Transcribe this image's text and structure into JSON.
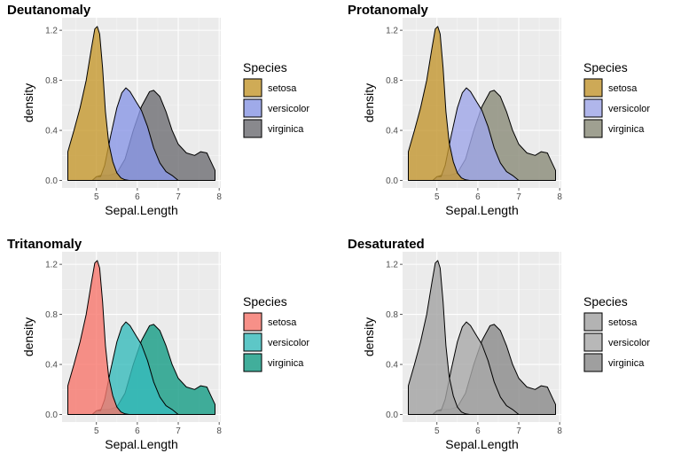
{
  "chart_data": [
    {
      "type": "area",
      "title": "Deutanomaly",
      "xlabel": "Sepal.Length",
      "ylabel": "density",
      "legend_title": "Species",
      "xlim": [
        4.3,
        7.9
      ],
      "ylim": [
        0,
        1.24
      ],
      "x_ticks": [
        "5",
        "6",
        "7",
        "8"
      ],
      "y_ticks": [
        "0.0",
        "0.4",
        "0.8",
        "1.2"
      ],
      "series": [
        {
          "name": "setosa",
          "color": "#c5992e"
        },
        {
          "name": "versicolor",
          "color": "#8a97e6"
        },
        {
          "name": "virginica",
          "color": "#6e6e73"
        }
      ]
    },
    {
      "type": "area",
      "title": "Protanomaly",
      "xlabel": "Sepal.Length",
      "ylabel": "density",
      "legend_title": "Species",
      "xlim": [
        4.3,
        7.9
      ],
      "ylim": [
        0,
        1.24
      ],
      "x_ticks": [
        "5",
        "6",
        "7",
        "8"
      ],
      "y_ticks": [
        "0.0",
        "0.4",
        "0.8",
        "1.2"
      ],
      "series": [
        {
          "name": "setosa",
          "color": "#c39630"
        },
        {
          "name": "versicolor",
          "color": "#9fa6e9"
        },
        {
          "name": "virginica",
          "color": "#8a8b78"
        }
      ]
    },
    {
      "type": "area",
      "title": "Tritanomaly",
      "xlabel": "Sepal.Length",
      "ylabel": "density",
      "legend_title": "Species",
      "xlim": [
        4.3,
        7.9
      ],
      "ylim": [
        0,
        1.24
      ],
      "x_ticks": [
        "5",
        "6",
        "7",
        "8"
      ],
      "y_ticks": [
        "0.0",
        "0.4",
        "0.8",
        "1.2"
      ],
      "series": [
        {
          "name": "setosa",
          "color": "#f8776d"
        },
        {
          "name": "versicolor",
          "color": "#37bcbc"
        },
        {
          "name": "virginica",
          "color": "#149c84"
        }
      ]
    },
    {
      "type": "area",
      "title": "Desaturated",
      "xlabel": "Sepal.Length",
      "ylabel": "density",
      "legend_title": "Species",
      "xlim": [
        4.3,
        7.9
      ],
      "ylim": [
        0,
        1.24
      ],
      "x_ticks": [
        "5",
        "6",
        "7",
        "8"
      ],
      "y_ticks": [
        "0.0",
        "0.4",
        "0.8",
        "1.2"
      ],
      "series": [
        {
          "name": "setosa",
          "color": "#a3a3a3"
        },
        {
          "name": "versicolor",
          "color": "#a9a9a9"
        },
        {
          "name": "virginica",
          "color": "#8a8a8a"
        }
      ]
    }
  ],
  "density_curves": {
    "setosa": [
      [
        4.3,
        0.23
      ],
      [
        4.45,
        0.4
      ],
      [
        4.6,
        0.58
      ],
      [
        4.75,
        0.8
      ],
      [
        4.88,
        1.06
      ],
      [
        4.96,
        1.21
      ],
      [
        5.02,
        1.23
      ],
      [
        5.08,
        1.17
      ],
      [
        5.15,
        0.9
      ],
      [
        5.22,
        0.55
      ],
      [
        5.3,
        0.3
      ],
      [
        5.4,
        0.15
      ],
      [
        5.5,
        0.06
      ],
      [
        5.6,
        0.02
      ],
      [
        5.7,
        0.005
      ],
      [
        5.8,
        0.0
      ]
    ],
    "versicolor": [
      [
        4.9,
        0.0
      ],
      [
        5.0,
        0.03
      ],
      [
        5.1,
        0.03
      ],
      [
        5.2,
        0.12
      ],
      [
        5.35,
        0.36
      ],
      [
        5.5,
        0.58
      ],
      [
        5.62,
        0.7
      ],
      [
        5.72,
        0.74
      ],
      [
        5.82,
        0.71
      ],
      [
        5.95,
        0.64
      ],
      [
        6.1,
        0.56
      ],
      [
        6.25,
        0.43
      ],
      [
        6.4,
        0.26
      ],
      [
        6.55,
        0.14
      ],
      [
        6.7,
        0.07
      ],
      [
        6.85,
        0.04
      ],
      [
        7.0,
        0.0
      ]
    ],
    "virginica": [
      [
        4.9,
        0.0
      ],
      [
        5.0,
        0.03
      ],
      [
        5.1,
        0.04
      ],
      [
        5.3,
        0.04
      ],
      [
        5.5,
        0.06
      ],
      [
        5.7,
        0.17
      ],
      [
        5.9,
        0.4
      ],
      [
        6.1,
        0.59
      ],
      [
        6.3,
        0.71
      ],
      [
        6.4,
        0.72
      ],
      [
        6.55,
        0.67
      ],
      [
        6.7,
        0.55
      ],
      [
        6.85,
        0.4
      ],
      [
        7.0,
        0.29
      ],
      [
        7.2,
        0.22
      ],
      [
        7.4,
        0.2
      ],
      [
        7.55,
        0.23
      ],
      [
        7.7,
        0.22
      ],
      [
        7.8,
        0.15
      ],
      [
        7.9,
        0.08
      ]
    ]
  }
}
